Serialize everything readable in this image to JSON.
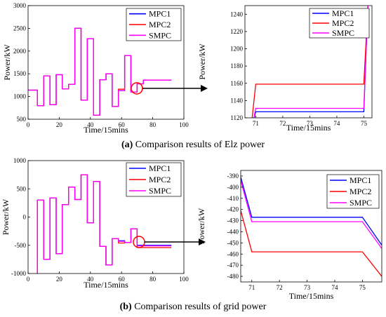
{
  "colors": {
    "MPC1": "#0000ff",
    "MPC2": "#ff0000",
    "SMPC": "#ff00ff",
    "callout": "#ff0000",
    "arrow": "#000000"
  },
  "captions": {
    "a": {
      "label": "(a)",
      "text": "Comparison results of Elz power"
    },
    "b": {
      "label": "(b)",
      "text": "Comparison results of grid power"
    }
  },
  "chart_data": [
    {
      "id": "elz-main",
      "type": "line",
      "ylabel": "Power/kW",
      "xlabel": "Time/15mins",
      "xlim": [
        0,
        100
      ],
      "ylim": [
        500,
        3000
      ],
      "xticks": [
        0,
        20,
        40,
        60,
        80,
        100
      ],
      "yticks": [
        500,
        1000,
        1500,
        2000,
        2500,
        3000
      ],
      "legend": "top-right",
      "step": true,
      "x": [
        0,
        2,
        4,
        6,
        8,
        10,
        12,
        14,
        16,
        18,
        20,
        22,
        24,
        26,
        28,
        30,
        32,
        34,
        36,
        38,
        40,
        42,
        44,
        46,
        48,
        50,
        52,
        54,
        56,
        58,
        60,
        62,
        64,
        66,
        68,
        70,
        72,
        74,
        76,
        78,
        80,
        82,
        84,
        86,
        88,
        90,
        92
      ],
      "series": [
        {
          "name": "MPC1",
          "values": [
            1140,
            1140,
            1140,
            800,
            800,
            1450,
            1450,
            820,
            820,
            1480,
            1480,
            1170,
            1170,
            1270,
            1270,
            2500,
            2500,
            920,
            920,
            2270,
            2270,
            590,
            590,
            1370,
            1370,
            1500,
            1500,
            780,
            780,
            1130,
            1130,
            1900,
            1900,
            1100,
            1100,
            1280,
            1280,
            1360,
            1360,
            1360,
            1360,
            1360,
            1360,
            1360,
            1360,
            1360,
            1360
          ]
        },
        {
          "name": "MPC2",
          "values": [
            1140,
            1140,
            1140,
            800,
            800,
            1450,
            1450,
            820,
            820,
            1480,
            1480,
            1170,
            1170,
            1270,
            1270,
            2500,
            2500,
            920,
            920,
            2270,
            2270,
            590,
            590,
            1370,
            1370,
            1500,
            1500,
            780,
            780,
            1160,
            1160,
            1900,
            1900,
            1100,
            1100,
            1280,
            1280,
            1360,
            1360,
            1360,
            1360,
            1360,
            1360,
            1360,
            1360,
            1360,
            1360
          ]
        },
        {
          "name": "SMPC",
          "values": [
            1140,
            1140,
            1140,
            800,
            800,
            1450,
            1450,
            820,
            820,
            1480,
            1480,
            1170,
            1170,
            1270,
            1270,
            2500,
            2500,
            920,
            920,
            2270,
            2270,
            590,
            590,
            1370,
            1370,
            1500,
            1500,
            780,
            780,
            1130,
            1130,
            1900,
            1900,
            1100,
            1100,
            1280,
            1280,
            1360,
            1360,
            1360,
            1360,
            1360,
            1360,
            1360,
            1360,
            1360,
            1360
          ]
        }
      ]
    },
    {
      "id": "elz-zoom",
      "type": "line",
      "ylabel": "Power/kW",
      "xlabel": "Time/15mins",
      "xlim": [
        70.6,
        75.3
      ],
      "ylim": [
        1120,
        1250
      ],
      "xticks": [
        71,
        72,
        73,
        74,
        75
      ],
      "yticks": [
        1120,
        1140,
        1160,
        1180,
        1200,
        1220,
        1240
      ],
      "legend": "top-left",
      "series": [
        {
          "name": "MPC1",
          "x": [
            70.9,
            71,
            75,
            75.15
          ],
          "values": [
            1115,
            1127,
            1127,
            1250
          ]
        },
        {
          "name": "MPC2",
          "x": [
            70.85,
            71,
            75,
            75.15
          ],
          "values": [
            1115,
            1159,
            1159,
            1250
          ]
        },
        {
          "name": "SMPC",
          "x": [
            70.9,
            71,
            75,
            75.15
          ],
          "values": [
            1115,
            1131,
            1131,
            1250
          ]
        }
      ]
    },
    {
      "id": "grid-main",
      "type": "line",
      "ylabel": "Power/kW",
      "xlabel": "Time/15mins",
      "xlim": [
        0,
        100
      ],
      "ylim": [
        -1000,
        1000
      ],
      "xticks": [
        0,
        20,
        40,
        60,
        80,
        100
      ],
      "yticks": [
        -1000,
        -500,
        0,
        500,
        1000
      ],
      "legend": "top-right",
      "step": true,
      "x": [
        0,
        2,
        4,
        6,
        8,
        10,
        12,
        14,
        16,
        18,
        20,
        22,
        24,
        26,
        28,
        30,
        32,
        34,
        36,
        38,
        40,
        42,
        44,
        46,
        48,
        50,
        52,
        54,
        56,
        58,
        60,
        62,
        64,
        66,
        68,
        70,
        72,
        74,
        76,
        78,
        80,
        82,
        84,
        86,
        88,
        90,
        92
      ],
      "series": [
        {
          "name": "MPC1",
          "values": [
            -1030,
            -1030,
            -1030,
            300,
            300,
            -750,
            -750,
            340,
            340,
            -650,
            -650,
            220,
            220,
            530,
            530,
            310,
            310,
            750,
            750,
            -100,
            -100,
            630,
            630,
            -520,
            -520,
            -850,
            -850,
            -380,
            -380,
            -420,
            -420,
            -450,
            -450,
            -210,
            -210,
            -500,
            -500,
            -500,
            -500,
            -500,
            -500,
            -500,
            -500,
            -500,
            -500,
            -500,
            -500
          ]
        },
        {
          "name": "MPC2",
          "values": [
            -1030,
            -1030,
            -1030,
            300,
            300,
            -750,
            -750,
            340,
            340,
            -650,
            -650,
            220,
            220,
            530,
            530,
            310,
            310,
            750,
            750,
            -100,
            -100,
            630,
            630,
            -520,
            -520,
            -850,
            -850,
            -380,
            -380,
            -460,
            -460,
            -450,
            -450,
            -210,
            -210,
            -540,
            -540,
            -540,
            -540,
            -540,
            -540,
            -540,
            -540,
            -540,
            -540,
            -540,
            -540
          ]
        },
        {
          "name": "SMPC",
          "values": [
            -1030,
            -1030,
            -1030,
            300,
            300,
            -750,
            -750,
            340,
            340,
            -650,
            -650,
            220,
            220,
            530,
            530,
            310,
            310,
            750,
            750,
            -100,
            -100,
            630,
            630,
            -520,
            -520,
            -850,
            -850,
            -380,
            -380,
            -430,
            -430,
            -450,
            -450,
            -210,
            -210,
            -510,
            -510,
            -510,
            -510,
            -510,
            -510,
            -510,
            -510,
            -510,
            -510,
            -510,
            -510
          ]
        }
      ]
    },
    {
      "id": "grid-zoom",
      "type": "line",
      "ylabel": "Power/kW",
      "xlabel": "Time/15mins",
      "xlim": [
        70.6,
        75.7
      ],
      "ylim": [
        -485,
        -385
      ],
      "xticks": [
        71,
        72,
        73,
        74,
        75
      ],
      "yticks": [
        -480,
        -470,
        -460,
        -450,
        -440,
        -430,
        -420,
        -410,
        -400,
        -390
      ],
      "legend": "top-right",
      "series": [
        {
          "name": "MPC1",
          "x": [
            70.6,
            71,
            75,
            75.7
          ],
          "values": [
            -391,
            -427,
            -427,
            -452
          ]
        },
        {
          "name": "MPC2",
          "x": [
            70.6,
            71,
            75,
            75.7
          ],
          "values": [
            -421,
            -458,
            -458,
            -480
          ]
        },
        {
          "name": "SMPC",
          "x": [
            70.6,
            71,
            75,
            75.7
          ],
          "values": [
            -394,
            -431,
            -431,
            -455
          ]
        }
      ]
    }
  ]
}
